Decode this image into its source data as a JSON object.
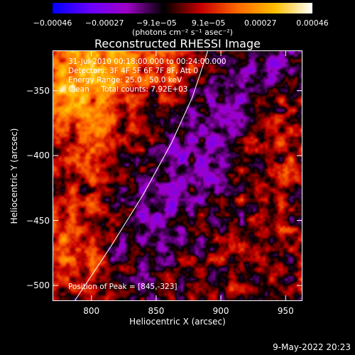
{
  "chart_data": {
    "type": "heatmap",
    "title": "Reconstructed RHESSI Image",
    "xlabel": "Heliocentric X (arcsec)",
    "ylabel": "Heliocentric Y (arcsec)",
    "xlim": [
      770,
      963
    ],
    "ylim": [
      -512,
      -319
    ],
    "x_ticks": [
      800,
      850,
      900,
      950
    ],
    "y_ticks": [
      -350,
      -400,
      -450,
      -500
    ],
    "colorbar": {
      "range": [
        -0.00046,
        0.00046
      ],
      "tick_labels": [
        "-0.00046",
        "-0.00027",
        "-9.1e-05",
        "9.1e-05",
        "0.00027",
        "0.00046"
      ],
      "units": "(photons cm⁻² s⁻¹ asec⁻²)",
      "colors": [
        "#0000ff",
        "#6a00ff",
        "#a000c8",
        "#000000",
        "#c80000",
        "#ff6a00",
        "#ffc000",
        "#ffffff"
      ]
    },
    "annotations": [
      "31-Jul-2010 00:18:00.000 to 00:24:00.000",
      "Detectors: 3F 4F 5F 6F 7F 8F, Att 0",
      "Energy Range: 25.0 - 50.0 keV",
      "Clean     Total counts: 7.92E+03"
    ],
    "peak_label": "Position of Peak = [845,-323]",
    "limb_curve": [
      [
        787,
        -512
      ],
      [
        815,
        -470
      ],
      [
        840,
        -430
      ],
      [
        862,
        -390
      ],
      [
        878,
        -355
      ],
      [
        890,
        -319
      ]
    ],
    "features": {
      "upper_left_bright": true,
      "lower_left_bright": true,
      "right_side_mixed": true,
      "central_diagonal_negative_band": true
    }
  },
  "timestamp": "9-May-2022 20:23"
}
